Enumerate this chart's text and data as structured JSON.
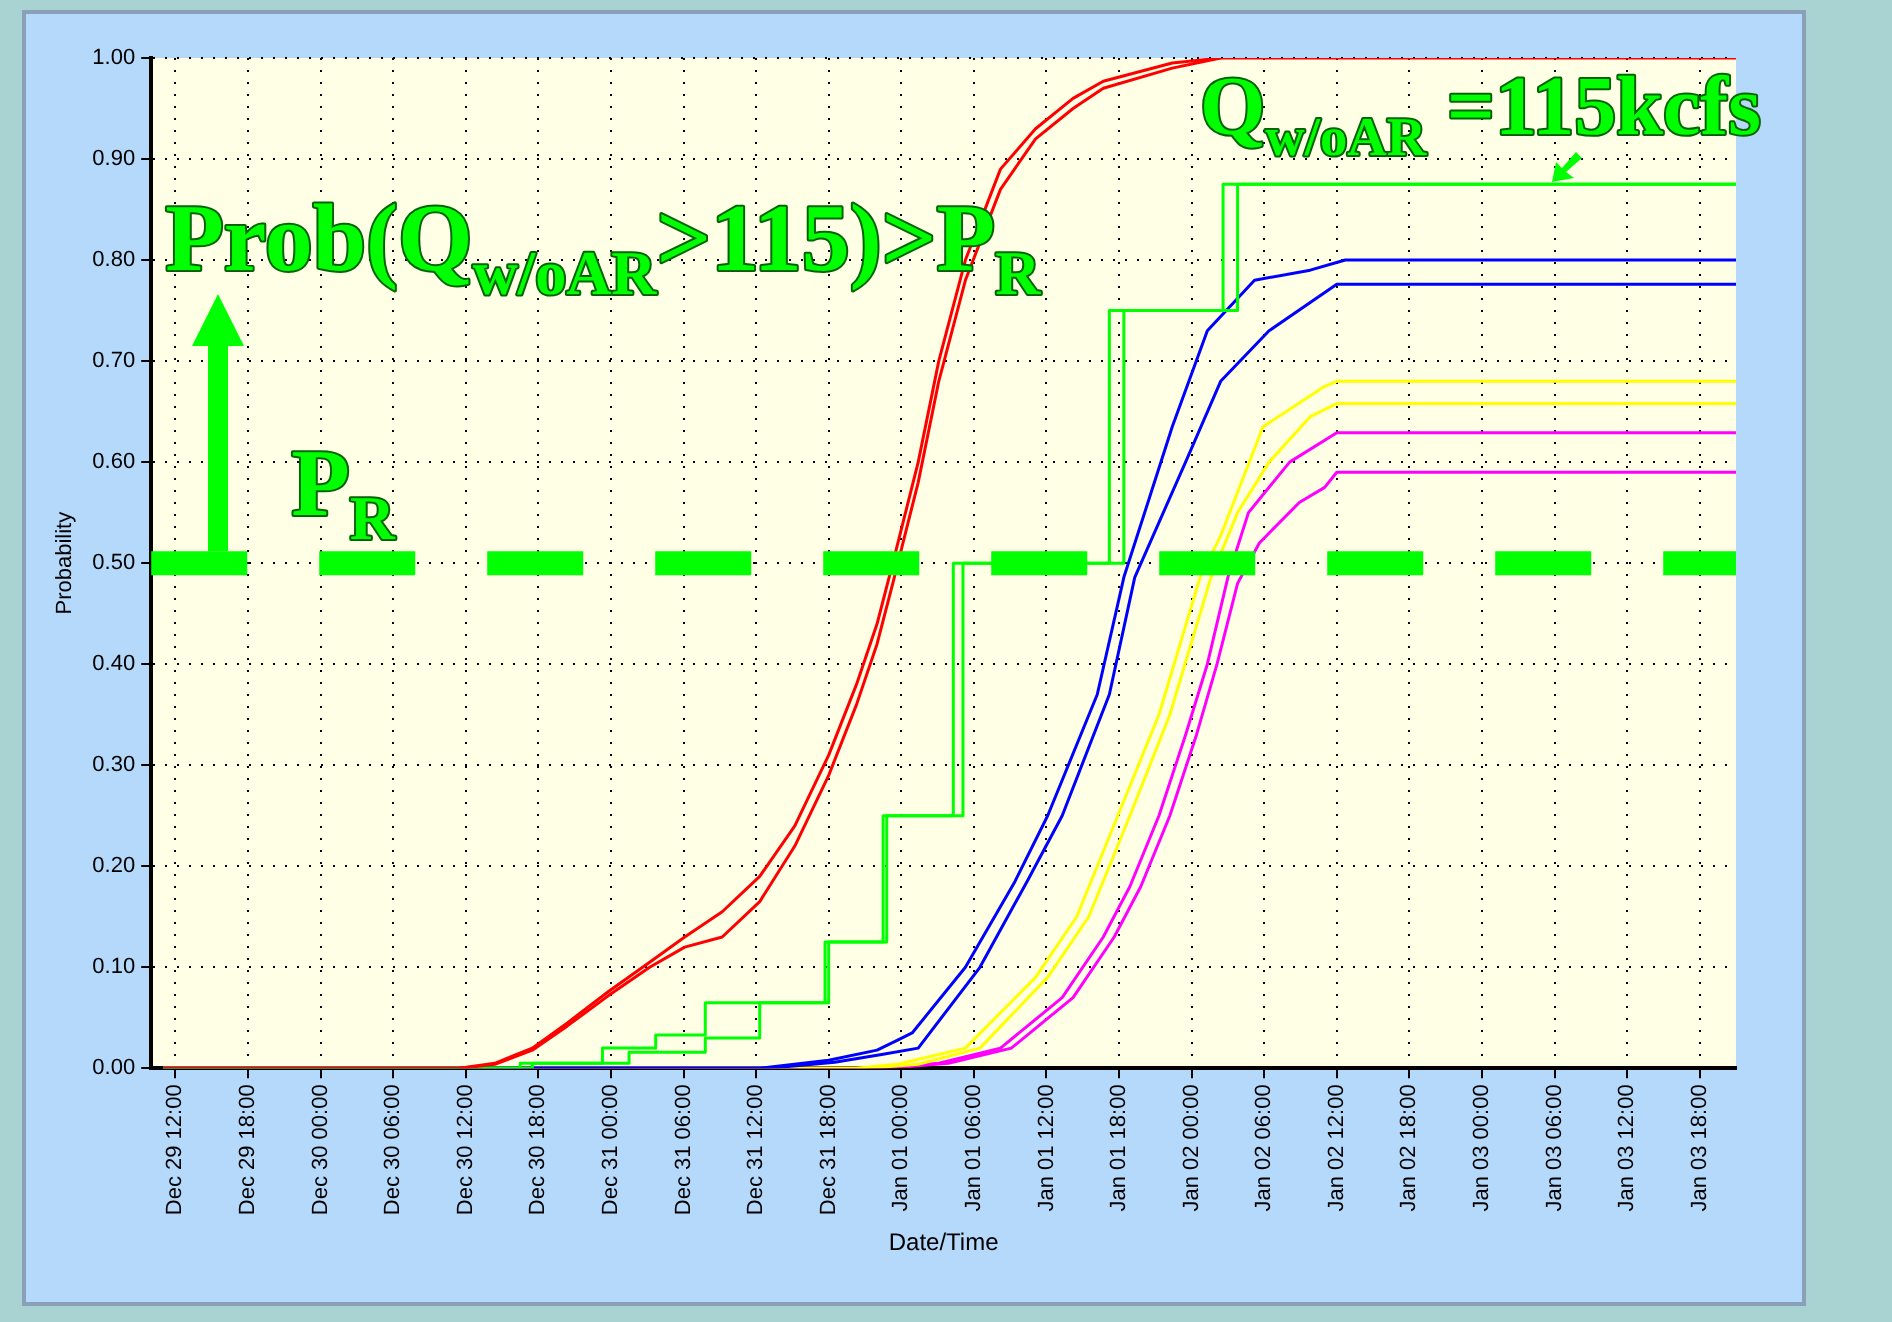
{
  "chart_data": {
    "type": "line",
    "xlabel": "Date/Time",
    "ylabel": "Probability",
    "xlim": [
      "2000-12-29T10:00",
      "2001-01-03T21:00"
    ],
    "ylim": [
      0,
      1
    ],
    "xticks": [
      {
        "value": "2000-12-29T12:00",
        "label": "Dec 29 12:00"
      },
      {
        "value": "2000-12-29T18:00",
        "label": "Dec 29 18:00"
      },
      {
        "value": "2000-12-30T00:00",
        "label": "Dec 30 00:00"
      },
      {
        "value": "2000-12-30T06:00",
        "label": "Dec 30 06:00"
      },
      {
        "value": "2000-12-30T12:00",
        "label": "Dec 30 12:00"
      },
      {
        "value": "2000-12-30T18:00",
        "label": "Dec 30 18:00"
      },
      {
        "value": "2000-12-31T00:00",
        "label": "Dec 31 00:00"
      },
      {
        "value": "2000-12-31T06:00",
        "label": "Dec 31 06:00"
      },
      {
        "value": "2000-12-31T12:00",
        "label": "Dec 31 12:00"
      },
      {
        "value": "2000-12-31T18:00",
        "label": "Dec 31 18:00"
      },
      {
        "value": "2001-01-01T00:00",
        "label": "Jan 01 00:00"
      },
      {
        "value": "2001-01-01T06:00",
        "label": "Jan 01 06:00"
      },
      {
        "value": "2001-01-01T12:00",
        "label": "Jan 01 12:00"
      },
      {
        "value": "2001-01-01T18:00",
        "label": "Jan 01 18:00"
      },
      {
        "value": "2001-01-02T00:00",
        "label": "Jan 02 00:00"
      },
      {
        "value": "2001-01-02T06:00",
        "label": "Jan 02 06:00"
      },
      {
        "value": "2001-01-02T12:00",
        "label": "Jan 02 12:00"
      },
      {
        "value": "2001-01-02T18:00",
        "label": "Jan 02 18:00"
      },
      {
        "value": "2001-01-03T00:00",
        "label": "Jan 03 00:00"
      },
      {
        "value": "2001-01-03T06:00",
        "label": "Jan 03 06:00"
      },
      {
        "value": "2001-01-03T12:00",
        "label": "Jan 03 12:00"
      },
      {
        "value": "2001-01-03T18:00",
        "label": "Jan 03 18:00"
      }
    ],
    "yticks": [
      {
        "value": 0,
        "label": "0.00"
      },
      {
        "value": 0.1,
        "label": "0.10"
      },
      {
        "value": 0.2,
        "label": "0.20"
      },
      {
        "value": 0.3,
        "label": "0.30"
      },
      {
        "value": 0.4,
        "label": "0.40"
      },
      {
        "value": 0.5,
        "label": "0.50"
      },
      {
        "value": 0.6,
        "label": "0.60"
      },
      {
        "value": 0.7,
        "label": "0.70"
      },
      {
        "value": 0.8,
        "label": "0.80"
      },
      {
        "value": 0.9,
        "label": "0.90"
      },
      {
        "value": 1,
        "label": "1.00"
      }
    ],
    "grid": true,
    "series": [
      {
        "color": "#ff0000",
        "x": [
          "2000-12-29T11:00",
          "2000-12-30T11:30",
          "2000-12-30T14:24",
          "2000-12-30T17:30",
          "2000-12-30T20:24",
          "2000-12-30T23:48",
          "2000-12-31T03:12",
          "2000-12-31T06:06",
          "2000-12-31T09:12",
          "2000-12-31T12:18",
          "2000-12-31T15:12",
          "2000-12-31T18:00",
          "2000-12-31T20:18",
          "2000-12-31T22:00",
          "2000-12-31T23:18",
          "2001-01-01T01:24",
          "2001-01-01T03:06",
          "2001-01-01T05:18",
          "2001-01-01T08:12",
          "2001-01-01T11:06",
          "2001-01-01T14:12",
          "2001-01-01T16:42",
          "2001-01-01T22:24",
          "2001-01-02T02:24",
          "2001-01-03T21:00"
        ],
        "values": [
          0,
          0,
          0.005,
          0.02,
          0.045,
          0.076,
          0.105,
          0.13,
          0.155,
          0.19,
          0.24,
          0.31,
          0.38,
          0.44,
          0.5,
          0.6,
          0.7,
          0.8,
          0.89,
          0.93,
          0.96,
          0.977,
          0.995,
          1,
          1
        ]
      },
      {
        "color": "#ff0000",
        "x": [
          "2000-12-30T11:30",
          "2000-12-30T14:24",
          "2000-12-30T17:30",
          "2000-12-30T20:24",
          "2000-12-30T23:48",
          "2000-12-31T03:12",
          "2000-12-31T06:06",
          "2000-12-31T09:12",
          "2000-12-31T12:18",
          "2000-12-31T15:12",
          "2000-12-31T18:00",
          "2000-12-31T20:18",
          "2000-12-31T22:00",
          "2000-12-31T23:18",
          "2001-01-01T01:24",
          "2001-01-01T03:06",
          "2001-01-01T05:18",
          "2001-01-01T08:12",
          "2001-01-01T11:06",
          "2001-01-01T14:12",
          "2001-01-01T16:42",
          "2001-01-01T22:24",
          "2001-01-02T02:24"
        ],
        "values": [
          0,
          0.004,
          0.018,
          0.042,
          0.072,
          0.1,
          0.12,
          0.13,
          0.165,
          0.22,
          0.29,
          0.36,
          0.42,
          0.48,
          0.58,
          0.68,
          0.78,
          0.87,
          0.92,
          0.95,
          0.97,
          0.99,
          1
        ]
      },
      {
        "type": "step",
        "color": "#00ff00",
        "x": [
          "2000-12-29T11:00",
          "2000-12-30T16:30",
          "2000-12-30T23:18",
          "2000-12-31T03:42",
          "2000-12-31T07:48",
          "2000-12-31T17:42",
          "2000-12-31T22:30",
          "2001-01-01T04:18",
          "2001-01-01T17:12",
          "2001-01-02T02:36",
          "2001-01-03T21:00"
        ],
        "values": [
          0,
          0.005,
          0.02,
          0.033,
          0.065,
          0.125,
          0.25,
          0.5,
          0.75,
          0.875,
          0.875
        ]
      },
      {
        "type": "step",
        "color": "#00ff00",
        "x": [
          "2000-12-29T11:00",
          "2000-12-30T17:30",
          "2000-12-31T01:30",
          "2000-12-31T07:48",
          "2000-12-31T12:18",
          "2000-12-31T18:00",
          "2000-12-31T22:48",
          "2001-01-01T05:06",
          "2001-01-01T18:24",
          "2001-01-02T03:48",
          "2001-01-03T21:00"
        ],
        "values": [
          0,
          0.005,
          0.016,
          0.03,
          0.065,
          0.125,
          0.25,
          0.5,
          0.75,
          0.875,
          0.875
        ]
      },
      {
        "color": "#0000ff",
        "x": [
          "2000-12-29T11:00",
          "2000-12-31T12:18",
          "2000-12-31T18:00",
          "2000-12-31T22:00",
          "2000-12-31T23:42",
          "2001-01-01T00:54",
          "2001-01-01T05:18",
          "2001-01-01T09:24",
          "2001-01-01T12:06",
          "2001-01-01T16:12",
          "2001-01-01T18:24",
          "2001-01-01T22:24",
          "2001-01-02T01:18",
          "2001-01-02T05:12",
          "2001-01-02T09:48",
          "2001-01-02T12:42",
          "2001-01-03T21:00"
        ],
        "values": [
          0,
          0,
          0.008,
          0.018,
          0.028,
          0.035,
          0.1,
          0.185,
          0.25,
          0.37,
          0.486,
          0.635,
          0.73,
          0.78,
          0.79,
          0.8,
          0.8
        ]
      },
      {
        "color": "#0000ff",
        "x": [
          "2000-12-29T11:00",
          "2000-12-31T13:00",
          "2000-12-31T18:30",
          "2000-12-31T22:30",
          "2001-01-01T01:24",
          "2001-01-01T06:30",
          "2001-01-01T10:24",
          "2001-01-01T13:18",
          "2001-01-01T17:12",
          "2001-01-01T19:18",
          "2001-01-01T23:30",
          "2001-01-02T02:24",
          "2001-01-02T06:24",
          "2001-01-02T12:00",
          "2001-01-03T21:00"
        ],
        "values": [
          0,
          0,
          0.006,
          0.014,
          0.02,
          0.1,
          0.185,
          0.25,
          0.37,
          0.486,
          0.6,
          0.68,
          0.73,
          0.776,
          0.776
        ]
      },
      {
        "color": "#ffff00",
        "x": [
          "2000-12-29T11:00",
          "2000-12-31T20:18",
          "2000-12-31T23:42",
          "2001-01-01T05:18",
          "2001-01-01T11:06",
          "2001-01-01T14:30",
          "2001-01-01T17:54",
          "2001-01-01T21:18",
          "2001-01-02T00:42",
          "2001-01-02T02:24",
          "2001-01-02T05:54",
          "2001-01-02T11:00",
          "2001-01-02T12:00",
          "2001-01-03T21:00"
        ],
        "values": [
          0,
          0,
          0.004,
          0.02,
          0.09,
          0.15,
          0.25,
          0.35,
          0.486,
          0.527,
          0.635,
          0.675,
          0.68,
          0.68
        ]
      },
      {
        "color": "#ffff00",
        "x": [
          "2000-12-29T11:00",
          "2000-12-31T21:06",
          "2001-01-01T01:24",
          "2001-01-01T06:30",
          "2001-01-01T12:06",
          "2001-01-01T15:30",
          "2001-01-01T18:54",
          "2001-01-01T22:12",
          "2001-01-02T01:36",
          "2001-01-02T03:48",
          "2001-01-02T06:24",
          "2001-01-02T09:48",
          "2001-01-02T12:00",
          "2001-01-03T21:00"
        ],
        "values": [
          0,
          0,
          0.004,
          0.02,
          0.09,
          0.15,
          0.25,
          0.35,
          0.486,
          0.55,
          0.6,
          0.645,
          0.658,
          0.658
        ]
      },
      {
        "color": "#ff00ff",
        "x": [
          "2000-12-29T11:00",
          "2000-12-31T22:00",
          "2001-01-01T03:06",
          "2001-01-01T08:12",
          "2001-01-01T13:18",
          "2001-01-01T16:42",
          "2001-01-01T18:54",
          "2001-01-01T21:18",
          "2001-01-01T23:30",
          "2001-01-02T01:18",
          "2001-01-02T03:00",
          "2001-01-02T04:42",
          "2001-01-02T08:06",
          "2001-01-02T12:00",
          "2001-01-03T21:00"
        ],
        "values": [
          0,
          0,
          0.005,
          0.02,
          0.07,
          0.13,
          0.18,
          0.25,
          0.33,
          0.4,
          0.486,
          0.55,
          0.6,
          0.629,
          0.629
        ]
      },
      {
        "color": "#ff00ff",
        "x": [
          "2000-12-29T11:00",
          "2000-12-31T22:48",
          "2001-01-01T03:54",
          "2001-01-01T09:06",
          "2001-01-01T14:12",
          "2001-01-01T17:36",
          "2001-01-01T19:48",
          "2001-01-01T22:12",
          "2001-01-02T00:24",
          "2001-01-02T02:06",
          "2001-01-02T03:48",
          "2001-01-02T05:36",
          "2001-01-02T08:54",
          "2001-01-02T11:00",
          "2001-01-02T12:00",
          "2001-01-03T21:00"
        ],
        "values": [
          0,
          0,
          0.005,
          0.02,
          0.07,
          0.13,
          0.18,
          0.25,
          0.33,
          0.4,
          0.48,
          0.52,
          0.56,
          0.575,
          0.59,
          0.59
        ]
      }
    ],
    "ref_lines": [
      {
        "axis": "y",
        "value": 0.5,
        "label": "P$_{R}$",
        "color": "#00ff00",
        "line_style": "dashed"
      }
    ],
    "annotations": [
      "Prob(Q$_{w/oAR}$>115)>P$_{R}$",
      "Q$_{w/oAR}$ =115kcfs"
    ]
  }
}
